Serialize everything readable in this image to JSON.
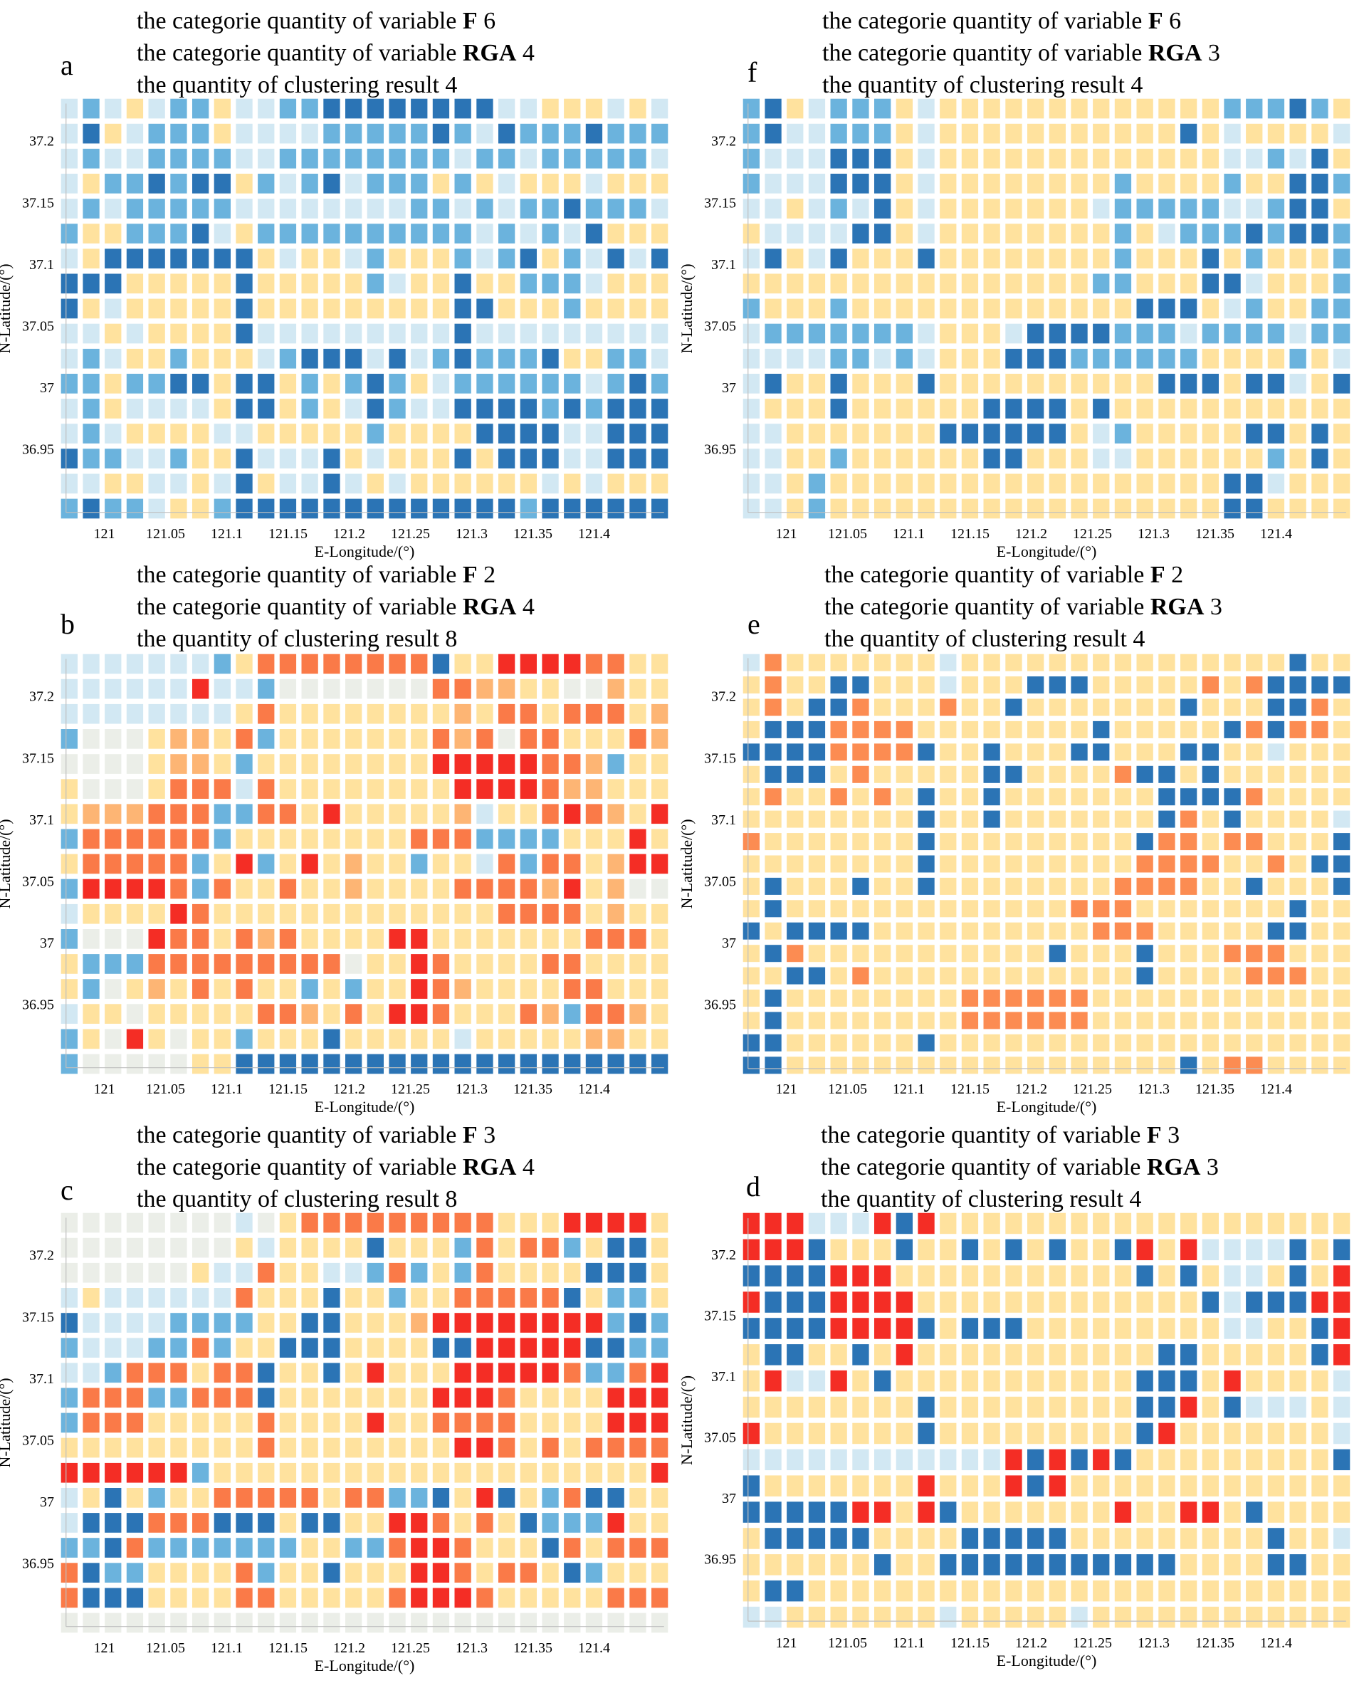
{
  "figure": {
    "header_prefix_f": "the categorie quantity of  variable",
    "header_prefix_rga": "the categorie quantity of variable",
    "header_prefix_result": "the quantity of clustering result",
    "var_f": "F",
    "var_rga": "RGA"
  },
  "chart_data": [
    {
      "panel": "a",
      "type": "heatmap",
      "f_categories": 6,
      "rga_categories": 4,
      "clusters": 4,
      "xlabel": "E-Longitude/(°)",
      "ylabel": "N-Latitude/(°)",
      "xticks": [
        "121",
        "121.05",
        "121.1",
        "121.15",
        "121.2",
        "121.25",
        "121.3",
        "121.35",
        "121.4"
      ],
      "yticks": [
        "37.2",
        "37.15",
        "37.1",
        "37.05",
        "37",
        "36.95"
      ],
      "palette": [
        "#FFE29E",
        "#D2E8F3",
        "#6BB3DD",
        "#2B74B5"
      ],
      "grid": [
        "1210122011223333333311000101",
        "1301222011112222232132223222",
        "1211222211222222221221222221",
        "1022323302123122202010001000",
        "1212222211111111221212232221",
        "2002223102222222222121213000",
        "1033333330100120002123021313",
        "3330000030000021003002221000",
        "3010000030000000003300020000",
        "1101000031111111113111111111",
        "1210020001233313123222300221",
        "2202233033020232012222221232",
        "1201111033020132113333232333",
        "1210000110000020000333311333",
        "3221120031113010003033311333",
        "1100110130113101000000101000",
        "2322100233333333333332333333"
      ]
    },
    {
      "panel": "f",
      "type": "heatmap",
      "f_categories": 6,
      "rga_categories": 3,
      "clusters": 4,
      "xlabel": "E-Longitude/(°)",
      "ylabel": "N-Latitude/(°)",
      "xticks": [
        "121",
        "121.05",
        "121.1",
        "121.15",
        "121.2",
        "121.25",
        "121.3",
        "121.35",
        "121.4"
      ],
      "yticks": [
        "37.2",
        "37.15",
        "37.1",
        "37.05",
        "37",
        "36.95"
      ],
      "palette": [
        "#FFE29E",
        "#D2E8F3",
        "#6BB3DD",
        "#2B74B5"
      ],
      "grid": [
        "2301222010000000000000222320",
        "2311222010000000000030100001",
        "2111333010000000000000112130",
        "2111333010000000020000200332",
        "1101213010000000122222112330",
        "0111133010000000020122232332",
        "1301300030000000020003020002",
        "0000000000000000220003310002",
        "2000200000000000003330120022",
        "1222222210001333322212222122",
        "1111221210003332222220000201",
        "1300300030000000000333033103",
        "1000300000033330300000000000",
        "1100000003333330120000033030",
        "1100200000033000110000002030",
        "1102000000000000000000331000",
        "1102000000000000000000330000"
      ]
    },
    {
      "panel": "b",
      "type": "heatmap",
      "f_categories": 2,
      "rga_categories": 4,
      "clusters": 8,
      "xlabel": "E-Longitude/(°)",
      "ylabel": "N-Latitude/(°)",
      "xticks": [
        "121",
        "121.05",
        "121.1",
        "121.15",
        "121.2",
        "121.25",
        "121.3",
        "121.35",
        "121.4"
      ],
      "yticks": [
        "37.2",
        "37.15",
        "37.1",
        "37.05",
        "37",
        "36.95"
      ],
      "palette": [
        "#FFE29E",
        "#D2E8F3",
        "#6BB3DD",
        "#2B74B5",
        "#EBEEE8",
        "#FDB574",
        "#FA7A48",
        "#F42D25"
      ],
      "grid": [
        "1111111206666666630077776600",
        "1111117112444444466550044500",
        "1111111106000000005066066605",
        "2444055062000000065646600065",
        "4444055020000000077777665200",
        "0444066616000000007777655000",
        "0555666226607000005100676507",
        "2666666200000000666222200070",
        "0666662072070500200162660577",
        "2777762600600500006666570544",
        "1000076000000000000066660500",
        "2444766065600007700000006660",
        "0222666666666400760000660000",
        "0240506060020200765000066000",
        "1004000006650607760006526650",
        "2047040020003000001000005500",
        "2444440033333333333333333333"
      ]
    },
    {
      "panel": "e",
      "type": "heatmap",
      "f_categories": 2,
      "rga_categories": 3,
      "clusters": 4,
      "xlabel": "E-Longitude/(°)",
      "ylabel": "N-Latitude/(°)",
      "xticks": [
        "121",
        "121.05",
        "121.1",
        "121.15",
        "121.2",
        "121.25",
        "121.3",
        "121.35",
        "121.4"
      ],
      "yticks": [
        "37.2",
        "37.15",
        "37.1",
        "37.05",
        "37",
        "36.95"
      ],
      "palette": [
        "#FFE29E",
        "#FC8C52",
        "#2B74B5",
        "#D2E8F3"
      ],
      "grid": [
        "3100000003000000000000000200",
        "0100220003000222000001012222",
        "0102210001002000000020002210",
        "0222111100000000200000212110",
        "2222111120020002200022003000",
        "0222010000022000012202000000",
        "0100101020020000000222210000",
        "0000000020020000000210200003",
        "1000000020000000002110110002",
        "0000000020000000001111001022",
        "0200020020000000011110020002",
        "0200000000000001110000000200",
        "2022220000000000111000002200",
        "0210000000000020002000111000",
        "0022010000000000002000011100",
        "0200000000111111000000000000",
        "0200000000111111000000000000",
        "2200000020000000000000000000",
        "2200000000000000000020110000"
      ]
    },
    {
      "panel": "c",
      "type": "heatmap",
      "f_categories": 3,
      "rga_categories": 4,
      "clusters": 8,
      "xlabel": "E-Longitude/(°)",
      "ylabel": "N-Latitude/(°)",
      "xticks": [
        "121",
        "121.05",
        "121.1",
        "121.15",
        "121.2",
        "121.25",
        "121.3",
        "121.35",
        "121.4"
      ],
      "yticks": [
        "37.2",
        "37.15",
        "37.1",
        "37.05",
        "37",
        "36.95"
      ],
      "palette": [
        "#FFE29E",
        "#D2E8F3",
        "#6BB3DD",
        "#2B74B5",
        "#EBEEE8",
        "#FDB574",
        "#FA7A48",
        "#F42D25"
      ],
      "grid": [
        "4444444414066666666600077770",
        "4444444401000030002606620330",
        "4444440116001126202600003330",
        "1011111160003002006666630220",
        "3111122220033000577777777232",
        "2111226200333000033777773322",
        "1126660663003070007777762267",
        "2666226663000000077760000777",
        "2666000006000070066660000777",
        "0000000006000000007760606666",
        "7777772000000000000000000007",
        "1030200666660662230730263300",
        "1333666333033007760603222700",
        "2236222222200226776000360666",
        "6322000062003000776066032000",
        "6333000066000006777600000666",
        "4444444444444444444444444444"
      ]
    },
    {
      "panel": "d",
      "type": "heatmap",
      "f_categories": 3,
      "rga_categories": 3,
      "clusters": 4,
      "xlabel": "E-Longitude/(°)",
      "ylabel": "N-Latitude/(°)",
      "xticks": [
        "121",
        "121.05",
        "121.1",
        "121.15",
        "121.2",
        "121.25",
        "121.3",
        "121.35",
        "121.4"
      ],
      "yticks": [
        "37.2",
        "37.15",
        "37.1",
        "37.05",
        "37",
        "36.95"
      ],
      "palette": [
        "#FFE29E",
        "#D2E8F3",
        "#2B74B5",
        "#F42D25"
      ],
      "grid": [
        "3331113230000000000000000000",
        "3332000200202020023031111202",
        "2222333000000000002020110203",
        "3222333300000000000002122233",
        "2222333320222000000000110023",
        "0220020300000000000220000023",
        "0311302000000000002220300001",
        "0000000020000000002230211101",
        "3000000020000000002300000001",
        "1111111111113232320000000002",
        "2000000030003230000000000000",
        "2222233032000000030033020000",
        "0222220000222220000000002001",
        "0000002002222222222200002200",
        "0220000000000000000000000000",
        "1100000001000001000000000000"
      ]
    }
  ]
}
